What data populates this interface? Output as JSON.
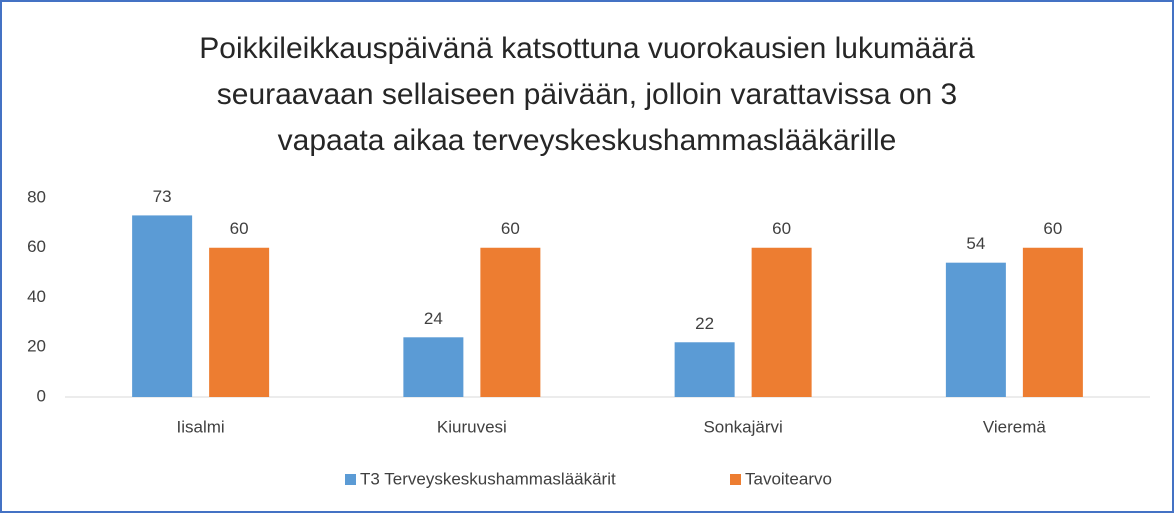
{
  "chart_data": {
    "type": "bar",
    "title": [
      "Poikkileikkauspäivänä katsottuna vuorokausien lukumäärä",
      "seuraavaan sellaiseen päivään, jolloin varattavissa on 3",
      "vapaata aikaa terveyskeskushammaslääkärille"
    ],
    "categories": [
      "Iisalmi",
      "Kiuruvesi",
      "Sonkajärvi",
      "Vieremä"
    ],
    "series": [
      {
        "name": "T3 Terveyskeskushammaslääkärit",
        "color": "#5b9bd5",
        "values": [
          73,
          24,
          22,
          54
        ]
      },
      {
        "name": "Tavoitearvo",
        "color": "#ed7d31",
        "values": [
          60,
          60,
          60,
          60
        ]
      }
    ],
    "ylim": [
      0,
      80
    ],
    "yticks": [
      0,
      20,
      40,
      60,
      80
    ],
    "grid": false,
    "legend": "bottom"
  }
}
